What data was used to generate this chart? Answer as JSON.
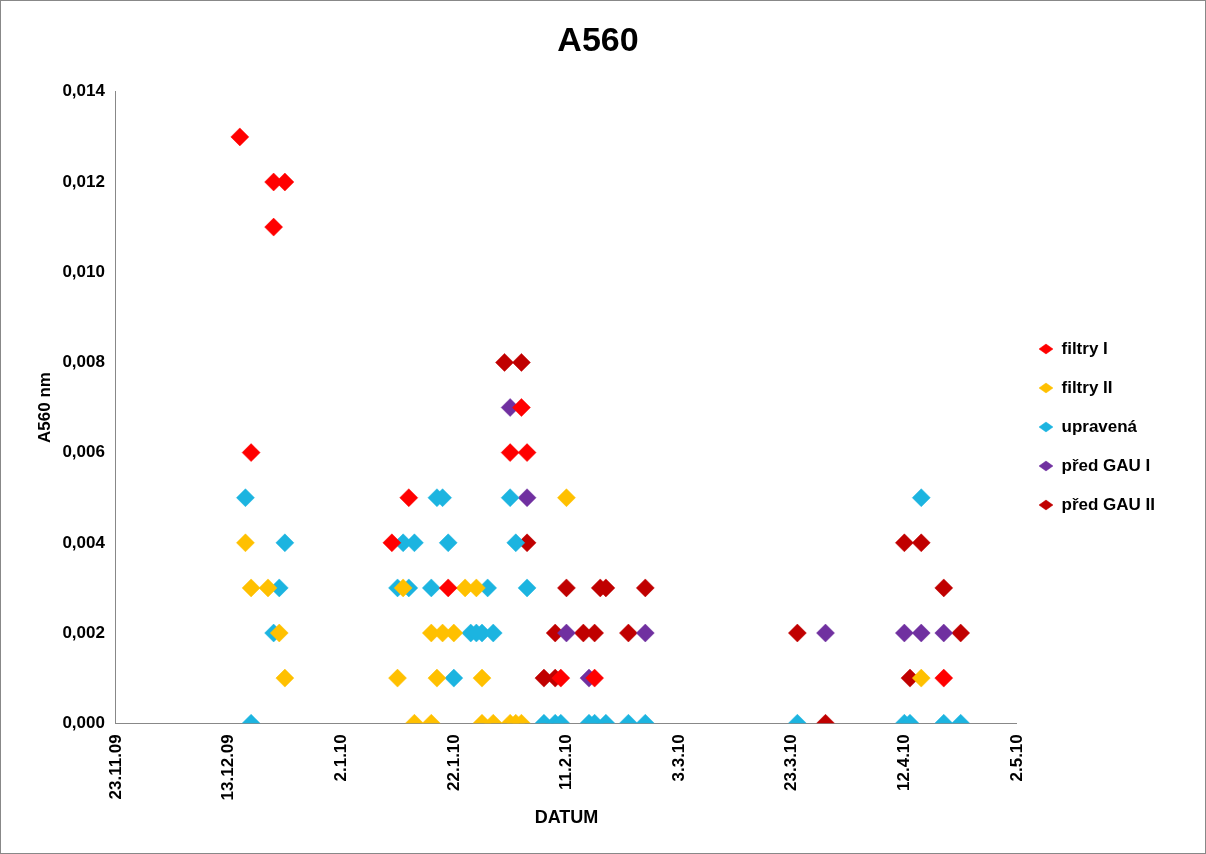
{
  "chart_data": {
    "type": "scatter",
    "title": "A560",
    "xlabel": "DATUM",
    "ylabel": "A560 nm",
    "xlim": [
      "2009-11-23",
      "2010-05-02"
    ],
    "xticks": [
      {
        "value": "2009-11-23",
        "label": "23.11.09"
      },
      {
        "value": "2009-12-13",
        "label": "13.12.09"
      },
      {
        "value": "2010-01-02",
        "label": "2.1.10"
      },
      {
        "value": "2010-01-22",
        "label": "22.1.10"
      },
      {
        "value": "2010-02-11",
        "label": "11.2.10"
      },
      {
        "value": "2010-03-03",
        "label": "3.3.10"
      },
      {
        "value": "2010-03-23",
        "label": "23.3.10"
      },
      {
        "value": "2010-04-12",
        "label": "12.4.10"
      },
      {
        "value": "2010-05-02",
        "label": "2.5.10"
      }
    ],
    "ylim": [
      0,
      0.014
    ],
    "yticks": [
      {
        "value": 0,
        "label": "0,000"
      },
      {
        "value": 0.002,
        "label": "0,002"
      },
      {
        "value": 0.004,
        "label": "0,004"
      },
      {
        "value": 0.006,
        "label": "0,006"
      },
      {
        "value": 0.008,
        "label": "0,008"
      },
      {
        "value": 0.01,
        "label": "0,010"
      },
      {
        "value": 0.012,
        "label": "0,012"
      },
      {
        "value": 0.014,
        "label": "0,014"
      }
    ],
    "grid": false,
    "legend": "right",
    "marker": "diamond",
    "series": [
      {
        "name": "filtry I",
        "color": "#ff0000",
        "x": [
          "2009-12-15",
          "2009-12-21",
          "2009-12-23",
          "2009-12-21",
          "2009-12-17",
          "2010-02-03",
          "2010-02-01",
          "2010-02-04",
          "2010-01-14",
          "2010-01-11",
          "2010-01-21",
          "2010-02-10",
          "2010-02-16",
          "2010-04-19"
        ],
        "values": [
          0.013,
          0.012,
          0.012,
          0.011,
          0.006,
          0.007,
          0.006,
          0.006,
          0.005,
          0.004,
          0.003,
          0.001,
          0.001,
          0.001
        ]
      },
      {
        "name": "filtry II",
        "color": "#ffc000",
        "x": [
          "2009-12-16",
          "2009-12-17",
          "2009-12-20",
          "2009-12-22",
          "2009-12-23",
          "2010-01-13",
          "2010-01-24",
          "2010-01-26",
          "2010-02-11",
          "2010-01-18",
          "2010-01-20",
          "2010-01-22",
          "2010-01-12",
          "2010-01-19",
          "2010-01-27",
          "2010-01-15",
          "2010-01-18",
          "2010-01-27",
          "2010-01-29",
          "2010-02-01",
          "2010-02-02",
          "2010-02-03",
          "2010-04-15"
        ],
        "values": [
          0.004,
          0.003,
          0.003,
          0.002,
          0.001,
          0.003,
          0.003,
          0.003,
          0.005,
          0.002,
          0.002,
          0.002,
          0.001,
          0.001,
          0.001,
          0,
          0,
          0,
          0,
          0,
          0,
          0,
          0.001
        ]
      },
      {
        "name": "upravená",
        "color": "#1cb4e0",
        "x": [
          "2009-12-16",
          "2009-12-23",
          "2009-12-22",
          "2009-12-21",
          "2009-12-17",
          "2010-01-19",
          "2010-01-20",
          "2010-02-01",
          "2010-01-13",
          "2010-01-15",
          "2010-01-21",
          "2010-02-02",
          "2010-01-12",
          "2010-01-14",
          "2010-01-18",
          "2010-01-28",
          "2010-02-04",
          "2010-01-25",
          "2010-01-26",
          "2010-01-27",
          "2010-01-29",
          "2010-01-22",
          "2010-02-07",
          "2010-02-09",
          "2010-02-10",
          "2010-02-15",
          "2010-02-16",
          "2010-02-18",
          "2010-02-22",
          "2010-02-25",
          "2010-03-24",
          "2010-04-12",
          "2010-04-13",
          "2010-04-19",
          "2010-04-22",
          "2010-04-15"
        ],
        "values": [
          0.005,
          0.004,
          0.003,
          0.002,
          0,
          0.005,
          0.005,
          0.005,
          0.004,
          0.004,
          0.004,
          0.004,
          0.003,
          0.003,
          0.003,
          0.003,
          0.003,
          0.002,
          0.002,
          0.002,
          0.002,
          0.001,
          0,
          0,
          0,
          0,
          0,
          0,
          0,
          0,
          0,
          0,
          0,
          0,
          0,
          0.005
        ]
      },
      {
        "name": "před GAU I",
        "color": "#7030a0",
        "x": [
          "2010-02-01",
          "2010-02-04",
          "2010-02-11",
          "2010-02-25",
          "2010-02-15",
          "2010-03-29",
          "2010-04-12",
          "2010-04-15",
          "2010-04-19"
        ],
        "values": [
          0.007,
          0.005,
          0.002,
          0.002,
          0.001,
          0.002,
          0.002,
          0.002,
          0.002
        ]
      },
      {
        "name": "před GAU II",
        "color": "#c00000",
        "x": [
          "2010-01-31",
          "2010-02-03",
          "2010-02-04",
          "2010-02-11",
          "2010-02-17",
          "2010-02-18",
          "2010-02-25",
          "2010-02-09",
          "2010-02-14",
          "2010-02-16",
          "2010-02-22",
          "2010-02-07",
          "2010-02-09",
          "2010-03-24",
          "2010-03-29",
          "2010-04-12",
          "2010-04-15",
          "2010-04-19",
          "2010-04-22",
          "2010-04-13"
        ],
        "values": [
          0.008,
          0.008,
          0.004,
          0.003,
          0.003,
          0.003,
          0.003,
          0.002,
          0.002,
          0.002,
          0.002,
          0.001,
          0.001,
          0.002,
          0,
          0.004,
          0.004,
          0.003,
          0.002,
          0.001
        ]
      }
    ]
  }
}
